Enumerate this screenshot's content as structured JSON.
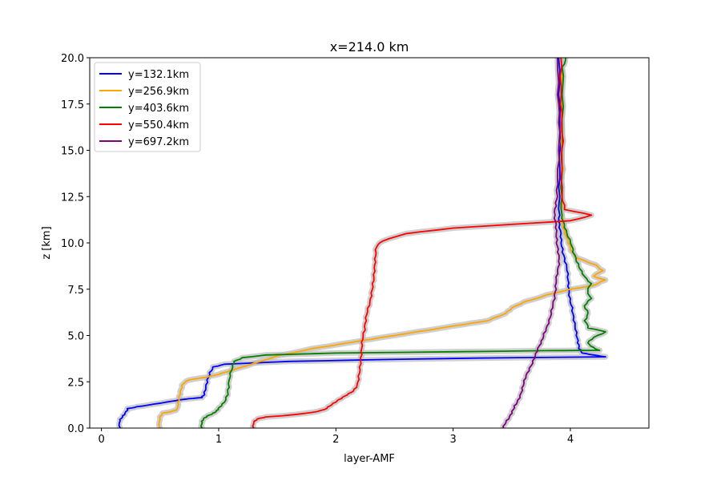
{
  "chart_data": {
    "type": "line",
    "title": "x=214.0 km",
    "xlabel": "layer-AMF",
    "ylabel": "z [km]",
    "xlim": [
      -0.1,
      4.67
    ],
    "ylim": [
      0,
      20
    ],
    "xticks": [
      0,
      1,
      2,
      3,
      4
    ],
    "yticks": [
      0.0,
      2.5,
      5.0,
      7.5,
      10.0,
      12.5,
      15.0,
      17.5,
      20.0
    ],
    "ytick_labels": [
      "0.0",
      "2.5",
      "5.0",
      "7.5",
      "10.0",
      "12.5",
      "15.0",
      "17.5",
      "20.0"
    ],
    "grid": false,
    "legend_position": "top-left",
    "uncertainty_band_color": "#bfbfbf",
    "series": [
      {
        "name": "y=132.1km",
        "color": "#0000ff",
        "points": [
          [
            0.16,
            0.0
          ],
          [
            0.16,
            0.4
          ],
          [
            0.18,
            0.6
          ],
          [
            0.2,
            0.8
          ],
          [
            0.22,
            1.05
          ],
          [
            0.3,
            1.15
          ],
          [
            0.45,
            1.3
          ],
          [
            0.6,
            1.45
          ],
          [
            0.7,
            1.55
          ],
          [
            0.78,
            1.6
          ],
          [
            0.86,
            1.65
          ],
          [
            0.88,
            1.8
          ],
          [
            0.89,
            2.2
          ],
          [
            0.9,
            2.6
          ],
          [
            0.92,
            3.0
          ],
          [
            0.95,
            3.3
          ],
          [
            1.05,
            3.45
          ],
          [
            1.6,
            3.6
          ],
          [
            2.4,
            3.7
          ],
          [
            3.2,
            3.78
          ],
          [
            4.3,
            3.85
          ],
          [
            4.2,
            3.95
          ],
          [
            4.1,
            4.05
          ],
          [
            4.07,
            4.3
          ],
          [
            4.06,
            4.6
          ],
          [
            4.05,
            5.0
          ],
          [
            4.04,
            5.5
          ],
          [
            4.03,
            6.0
          ],
          [
            4.02,
            6.5
          ],
          [
            4.0,
            7.0
          ],
          [
            3.99,
            7.5
          ],
          [
            3.98,
            8.0
          ],
          [
            3.97,
            8.5
          ],
          [
            3.95,
            9.0
          ],
          [
            3.93,
            9.5
          ],
          [
            3.92,
            10.0
          ],
          [
            3.92,
            10.5
          ],
          [
            3.91,
            11.0
          ],
          [
            3.91,
            11.5
          ],
          [
            3.91,
            12.5
          ],
          [
            3.91,
            14.0
          ],
          [
            3.91,
            16.0
          ],
          [
            3.9,
            18.0
          ],
          [
            3.9,
            20.0
          ]
        ]
      },
      {
        "name": "y=256.9km",
        "color": "#ffa500",
        "points": [
          [
            0.5,
            0.0
          ],
          [
            0.5,
            0.5
          ],
          [
            0.52,
            0.8
          ],
          [
            0.6,
            0.9
          ],
          [
            0.64,
            1.0
          ],
          [
            0.65,
            1.4
          ],
          [
            0.66,
            1.7
          ],
          [
            0.68,
            2.1
          ],
          [
            0.7,
            2.4
          ],
          [
            0.75,
            2.6
          ],
          [
            0.9,
            2.75
          ],
          [
            1.0,
            2.9
          ],
          [
            1.1,
            3.1
          ],
          [
            1.3,
            3.5
          ],
          [
            1.5,
            3.9
          ],
          [
            1.8,
            4.3
          ],
          [
            2.2,
            4.7
          ],
          [
            2.5,
            5.0
          ],
          [
            2.8,
            5.3
          ],
          [
            3.1,
            5.6
          ],
          [
            3.3,
            5.8
          ],
          [
            3.45,
            6.2
          ],
          [
            3.5,
            6.5
          ],
          [
            3.6,
            6.8
          ],
          [
            3.8,
            7.2
          ],
          [
            4.0,
            7.5
          ],
          [
            4.2,
            7.7
          ],
          [
            4.3,
            8.0
          ],
          [
            4.2,
            8.2
          ],
          [
            4.28,
            8.5
          ],
          [
            4.22,
            8.8
          ],
          [
            4.05,
            9.2
          ],
          [
            4.0,
            9.6
          ],
          [
            3.98,
            10.0
          ],
          [
            3.95,
            10.5
          ],
          [
            3.93,
            11.0
          ],
          [
            3.93,
            12.0
          ],
          [
            3.93,
            13.0
          ],
          [
            3.94,
            14.0
          ],
          [
            3.93,
            15.0
          ],
          [
            3.93,
            16.5
          ],
          [
            3.92,
            18.0
          ],
          [
            3.92,
            20.0
          ]
        ]
      },
      {
        "name": "y=403.6km",
        "color": "#008000",
        "points": [
          [
            0.86,
            0.0
          ],
          [
            0.86,
            0.3
          ],
          [
            0.87,
            0.5
          ],
          [
            0.9,
            0.65
          ],
          [
            0.95,
            0.8
          ],
          [
            0.98,
            0.95
          ],
          [
            1.0,
            1.1
          ],
          [
            1.05,
            1.4
          ],
          [
            1.08,
            1.8
          ],
          [
            1.09,
            2.2
          ],
          [
            1.1,
            2.8
          ],
          [
            1.12,
            3.3
          ],
          [
            1.13,
            3.6
          ],
          [
            1.2,
            3.8
          ],
          [
            1.4,
            3.95
          ],
          [
            2.0,
            4.05
          ],
          [
            3.0,
            4.12
          ],
          [
            3.8,
            4.18
          ],
          [
            4.25,
            4.2
          ],
          [
            4.2,
            4.35
          ],
          [
            4.15,
            4.6
          ],
          [
            4.2,
            4.9
          ],
          [
            4.3,
            5.2
          ],
          [
            4.15,
            5.4
          ],
          [
            4.12,
            5.8
          ],
          [
            4.15,
            6.2
          ],
          [
            4.12,
            6.6
          ],
          [
            4.18,
            7.0
          ],
          [
            4.15,
            7.4
          ],
          [
            4.18,
            7.8
          ],
          [
            4.12,
            8.2
          ],
          [
            4.08,
            8.6
          ],
          [
            4.05,
            9.0
          ],
          [
            4.02,
            9.5
          ],
          [
            4.0,
            10.0
          ],
          [
            3.97,
            10.5
          ],
          [
            3.95,
            11.0
          ],
          [
            3.93,
            11.5
          ],
          [
            3.93,
            12.5
          ],
          [
            3.93,
            14.0
          ],
          [
            3.93,
            16.0
          ],
          [
            3.93,
            18.0
          ],
          [
            3.93,
            19.5
          ],
          [
            3.96,
            20.0
          ]
        ]
      },
      {
        "name": "y=550.4km",
        "color": "#ff0000",
        "points": [
          [
            1.3,
            0.0
          ],
          [
            1.3,
            0.3
          ],
          [
            1.33,
            0.5
          ],
          [
            1.4,
            0.6
          ],
          [
            1.6,
            0.7
          ],
          [
            1.8,
            0.85
          ],
          [
            1.9,
            1.0
          ],
          [
            1.95,
            1.2
          ],
          [
            2.0,
            1.4
          ],
          [
            2.05,
            1.6
          ],
          [
            2.1,
            1.8
          ],
          [
            2.15,
            2.0
          ],
          [
            2.18,
            2.3
          ],
          [
            2.19,
            2.8
          ],
          [
            2.2,
            3.3
          ],
          [
            2.21,
            3.8
          ],
          [
            2.22,
            4.3
          ],
          [
            2.23,
            4.8
          ],
          [
            2.25,
            5.3
          ],
          [
            2.26,
            5.8
          ],
          [
            2.27,
            6.3
          ],
          [
            2.29,
            6.8
          ],
          [
            2.3,
            7.3
          ],
          [
            2.31,
            7.8
          ],
          [
            2.32,
            8.3
          ],
          [
            2.33,
            8.8
          ],
          [
            2.34,
            9.3
          ],
          [
            2.35,
            9.8
          ],
          [
            2.4,
            10.1
          ],
          [
            2.6,
            10.5
          ],
          [
            3.0,
            10.8
          ],
          [
            3.5,
            11.0
          ],
          [
            4.0,
            11.2
          ],
          [
            4.18,
            11.5
          ],
          [
            3.95,
            11.8
          ],
          [
            3.93,
            12.5
          ],
          [
            3.93,
            14.0
          ],
          [
            3.94,
            15.5
          ],
          [
            3.93,
            17.0
          ],
          [
            3.92,
            18.5
          ],
          [
            3.92,
            20.0
          ]
        ]
      },
      {
        "name": "y=697.2km",
        "color": "#800080",
        "points": [
          [
            3.43,
            0.0
          ],
          [
            3.45,
            0.3
          ],
          [
            3.48,
            0.6
          ],
          [
            3.5,
            0.9
          ],
          [
            3.52,
            1.2
          ],
          [
            3.55,
            1.5
          ],
          [
            3.58,
            1.9
          ],
          [
            3.6,
            2.3
          ],
          [
            3.62,
            2.7
          ],
          [
            3.65,
            3.1
          ],
          [
            3.68,
            3.5
          ],
          [
            3.7,
            3.9
          ],
          [
            3.72,
            4.3
          ],
          [
            3.75,
            4.7
          ],
          [
            3.77,
            5.1
          ],
          [
            3.8,
            5.5
          ],
          [
            3.83,
            6.0
          ],
          [
            3.85,
            6.5
          ],
          [
            3.87,
            7.0
          ],
          [
            3.88,
            7.5
          ],
          [
            3.88,
            8.0
          ],
          [
            3.89,
            8.5
          ],
          [
            3.9,
            9.0
          ],
          [
            3.89,
            9.5
          ],
          [
            3.88,
            10.0
          ],
          [
            3.88,
            10.5
          ],
          [
            3.88,
            11.0
          ],
          [
            3.87,
            11.5
          ],
          [
            3.88,
            12.0
          ],
          [
            3.89,
            12.5
          ],
          [
            3.89,
            13.5
          ],
          [
            3.9,
            15.0
          ],
          [
            3.9,
            16.5
          ],
          [
            3.89,
            18.0
          ],
          [
            3.89,
            20.0
          ]
        ]
      }
    ]
  }
}
